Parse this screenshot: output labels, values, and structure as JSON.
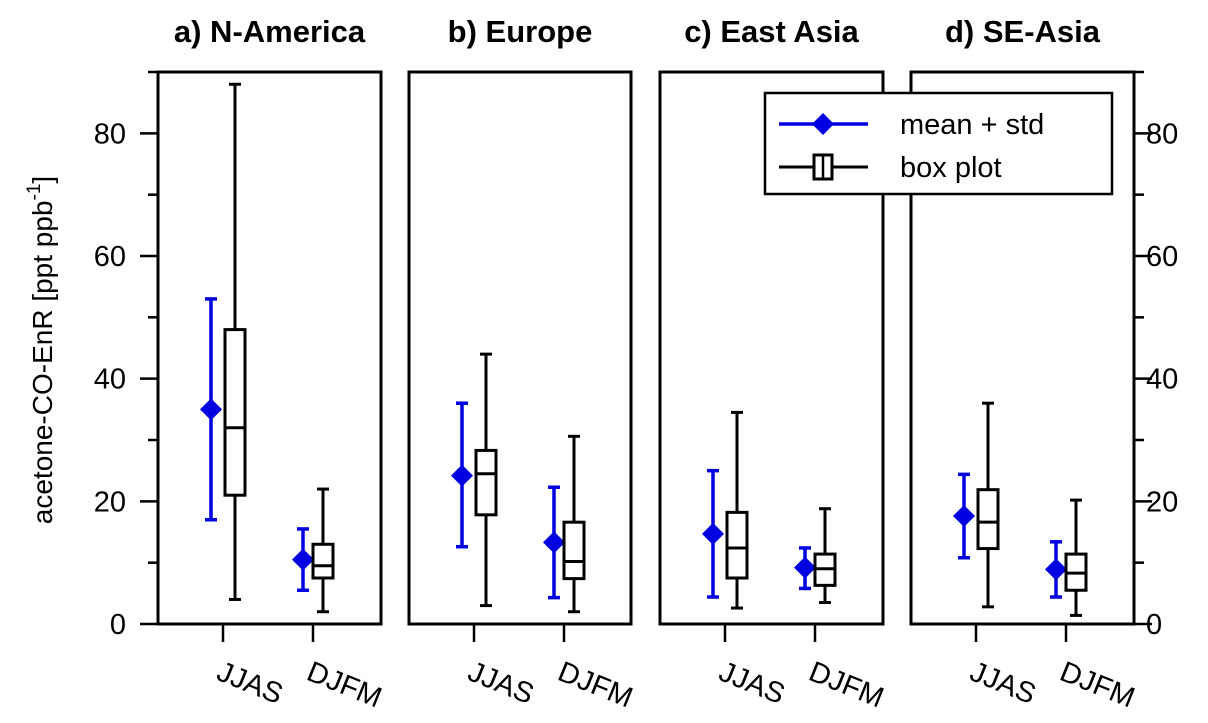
{
  "chart_data": {
    "type": "box",
    "ylabel": "acetone-CO-EnR [ppt ppb",
    "ylabel_superscript": "-1",
    "ylabel_suffix": "]",
    "ylim": [
      0,
      90
    ],
    "yticks": [
      0,
      20,
      40,
      60,
      80
    ],
    "categories": [
      "JJAS",
      "DJFM"
    ],
    "colors": {
      "mean": "#0000e0",
      "box": "#000000"
    },
    "legend": {
      "placement": "top-right",
      "entries": [
        {
          "label": "mean + std",
          "color": "#0000e0",
          "marker": "diamond-icon"
        },
        {
          "label": "box plot",
          "color": "#000000",
          "marker": "box-icon"
        }
      ]
    },
    "panels": [
      {
        "title": "a) N-America",
        "groups": [
          {
            "category": "JJAS",
            "mean_std": {
              "mean": 35,
              "low": 17,
              "high": 53
            },
            "box": {
              "whisker_low": 4,
              "q1": 21,
              "median": 32,
              "q3": 48,
              "whisker_high": 88
            }
          },
          {
            "category": "DJFM",
            "mean_std": {
              "mean": 10.5,
              "low": 5.5,
              "high": 15.5
            },
            "box": {
              "whisker_low": 2,
              "q1": 7.5,
              "median": 9.5,
              "q3": 13,
              "whisker_high": 22
            }
          }
        ]
      },
      {
        "title": "b) Europe",
        "groups": [
          {
            "category": "JJAS",
            "mean_std": {
              "mean": 24.2,
              "low": 12.6,
              "high": 36
            },
            "box": {
              "whisker_low": 3,
              "q1": 17.8,
              "median": 24.5,
              "q3": 28.3,
              "whisker_high": 44
            }
          },
          {
            "category": "DJFM",
            "mean_std": {
              "mean": 13.3,
              "low": 4.3,
              "high": 22.3
            },
            "box": {
              "whisker_low": 2,
              "q1": 7.4,
              "median": 10.2,
              "q3": 16.6,
              "whisker_high": 30.6
            }
          }
        ]
      },
      {
        "title": "c) East Asia",
        "groups": [
          {
            "category": "JJAS",
            "mean_std": {
              "mean": 14.7,
              "low": 4.4,
              "high": 25
            },
            "box": {
              "whisker_low": 2.6,
              "q1": 7.5,
              "median": 12.4,
              "q3": 18.2,
              "whisker_high": 34.5
            }
          },
          {
            "category": "DJFM",
            "mean_std": {
              "mean": 9.2,
              "low": 5.8,
              "high": 12.4
            },
            "box": {
              "whisker_low": 3.5,
              "q1": 6.3,
              "median": 9,
              "q3": 11.4,
              "whisker_high": 18.8
            }
          }
        ]
      },
      {
        "title": "d) SE-Asia",
        "groups": [
          {
            "category": "JJAS",
            "mean_std": {
              "mean": 17.6,
              "low": 10.8,
              "high": 24.4
            },
            "box": {
              "whisker_low": 2.8,
              "q1": 12.3,
              "median": 16.6,
              "q3": 21.9,
              "whisker_high": 36
            }
          },
          {
            "category": "DJFM",
            "mean_std": {
              "mean": 8.9,
              "low": 4.4,
              "high": 13.4
            },
            "box": {
              "whisker_low": 1.4,
              "q1": 5.5,
              "median": 8.3,
              "q3": 11.4,
              "whisker_high": 20.2
            }
          }
        ]
      }
    ]
  }
}
